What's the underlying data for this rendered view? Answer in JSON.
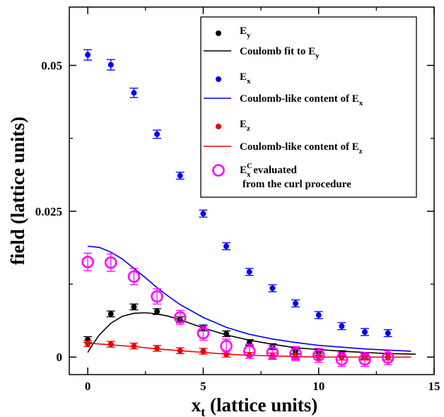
{
  "chart_data": {
    "type": "scatter",
    "xlabel": "x",
    "xlabel_sub": "t",
    "xlabel_rest": "  (lattice units)",
    "ylabel": "field (lattice units)",
    "xlim": [
      -0.8,
      15
    ],
    "ylim": [
      -0.003,
      0.06
    ],
    "x_ticks": [
      0,
      5,
      10,
      15
    ],
    "x_tick_labels": [
      "0",
      "5",
      "10",
      "15"
    ],
    "y_ticks": [
      0,
      0.025,
      0.05
    ],
    "y_tick_labels": [
      "0",
      "0.025",
      "0.05"
    ],
    "grid": false,
    "legend_position": "top-right",
    "legend": [
      {
        "id": "ey",
        "kind": "point",
        "color": "#000000",
        "main": "E",
        "sub": "y"
      },
      {
        "id": "ey_fit",
        "kind": "line",
        "color": "#000000",
        "text": "Coulomb fit to E",
        "sub": "y"
      },
      {
        "id": "ex",
        "kind": "point",
        "color": "#0000ee",
        "main": "E",
        "sub": "x"
      },
      {
        "id": "ex_fit",
        "kind": "line",
        "color": "#0000ee",
        "text": "Coulomb-like content of E",
        "sub": "x"
      },
      {
        "id": "ez",
        "kind": "point",
        "color": "#ee0000",
        "main": "E",
        "sub": "z"
      },
      {
        "id": "ez_fit",
        "kind": "line",
        "color": "#ee0000",
        "text": "Coulomb-like content of E",
        "sub": "z"
      },
      {
        "id": "curl",
        "kind": "circle",
        "color": "#ff00ff",
        "main": "E",
        "sub": "x",
        "sup": "C",
        "rest": " evaluated",
        "line2": "from the curl procedure"
      }
    ],
    "series": [
      {
        "id": "ex",
        "kind": "points",
        "color": "#0000ee",
        "x": [
          0,
          1,
          2,
          3,
          4,
          5,
          6,
          7,
          8,
          9,
          10,
          11,
          12,
          13
        ],
        "y": [
          0.0518,
          0.0501,
          0.0453,
          0.0382,
          0.0311,
          0.0246,
          0.019,
          0.0146,
          0.0118,
          0.0092,
          0.0072,
          0.0053,
          0.0043,
          0.0041
        ],
        "err": [
          0.0009,
          0.0009,
          0.0008,
          0.0007,
          0.0006,
          0.0006,
          0.0006,
          0.0006,
          0.0006,
          0.0006,
          0.0006,
          0.0006,
          0.0006,
          0.0006
        ]
      },
      {
        "id": "ey",
        "kind": "points",
        "color": "#000000",
        "x": [
          0,
          1,
          2,
          3,
          4,
          5,
          6,
          7,
          8,
          9,
          10,
          11,
          12,
          13
        ],
        "y": [
          0.003,
          0.0074,
          0.0086,
          0.0078,
          0.0064,
          0.005,
          0.004,
          0.0025,
          0.0018,
          0.001,
          0.0008,
          0.0006,
          0.0002,
          0.0
        ],
        "err": [
          0.0005,
          0.0005,
          0.0005,
          0.0005,
          0.0005,
          0.0005,
          0.0005,
          0.0005,
          0.0005,
          0.0005,
          0.0005,
          0.0005,
          0.0005,
          0.0005
        ]
      },
      {
        "id": "ez",
        "kind": "points",
        "color": "#ee0000",
        "x": [
          0,
          1,
          2,
          3,
          4,
          5,
          6,
          7,
          8,
          9,
          10,
          11,
          12,
          13
        ],
        "y": [
          0.0023,
          0.0022,
          0.0019,
          0.0015,
          0.0011,
          0.001,
          0.0005,
          0.0003,
          0.0002,
          0.0001,
          0.0001,
          0.0,
          0.0,
          0.0
        ],
        "err": [
          0.0005,
          0.0005,
          0.0005,
          0.0005,
          0.0005,
          0.0005,
          0.0005,
          0.0005,
          0.0005,
          0.0005,
          0.0005,
          0.0005,
          0.0005,
          0.0005
        ]
      },
      {
        "id": "curl",
        "kind": "circles",
        "color": "#ff00ff",
        "x": [
          0,
          1,
          2,
          3,
          4,
          5,
          6,
          7,
          8,
          9,
          10,
          11,
          12,
          13
        ],
        "y": [
          0.0163,
          0.0162,
          0.0138,
          0.0104,
          0.0068,
          0.0041,
          0.0019,
          0.001,
          0.0008,
          0.0006,
          0.0003,
          -0.0004,
          -0.0004,
          -0.0001
        ],
        "err": [
          0.0015,
          0.0015,
          0.0014,
          0.0013,
          0.0012,
          0.0012,
          0.0012,
          0.0012,
          0.0012,
          0.0012,
          0.0012,
          0.0012,
          0.0012,
          0.0012
        ]
      },
      {
        "id": "ex_fit",
        "kind": "line",
        "color": "#0000ee",
        "x": [
          0,
          0.5,
          1,
          1.5,
          2,
          2.5,
          3,
          3.5,
          4,
          5,
          6,
          7,
          8,
          9,
          10,
          11,
          12,
          13,
          14
        ],
        "y": [
          0.019,
          0.0188,
          0.018,
          0.0168,
          0.0152,
          0.0136,
          0.0119,
          0.0104,
          0.009,
          0.0068,
          0.0051,
          0.0039,
          0.0031,
          0.0025,
          0.002,
          0.0017,
          0.0014,
          0.0012,
          0.001
        ]
      },
      {
        "id": "ey_fit",
        "kind": "line",
        "color": "#000000",
        "x": [
          0,
          0.25,
          0.5,
          1,
          1.5,
          2,
          2.5,
          3,
          3.5,
          4,
          5,
          6,
          7,
          8,
          9,
          10,
          11,
          12,
          13,
          14.2
        ],
        "y": [
          0.0008,
          0.0024,
          0.0038,
          0.0058,
          0.007,
          0.0075,
          0.0076,
          0.0074,
          0.007,
          0.0064,
          0.005,
          0.0038,
          0.0029,
          0.0022,
          0.0016,
          0.0013,
          0.001,
          0.0008,
          0.0006,
          0.0005
        ]
      },
      {
        "id": "ez_fit",
        "kind": "line",
        "color": "#ee0000",
        "x": [
          0,
          1,
          2,
          3,
          4,
          5,
          6,
          7,
          8,
          9,
          10,
          11,
          12,
          13,
          14
        ],
        "y": [
          0.0024,
          0.0021,
          0.0018,
          0.0014,
          0.0011,
          0.0008,
          0.0005,
          0.0003,
          0.0002,
          0.0001,
          0.0,
          0.0,
          0.0,
          0.0,
          0.0
        ]
      }
    ]
  }
}
